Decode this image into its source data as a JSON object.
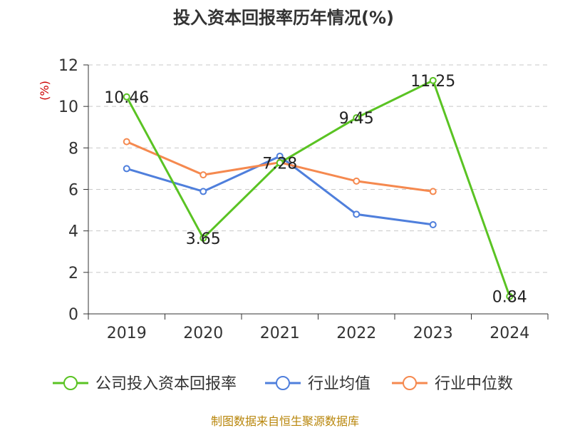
{
  "chart_data": {
    "type": "line",
    "title": "投入资本回报率历年情况(%)",
    "ylabel": "(%)",
    "xlabel": "",
    "categories": [
      "2019",
      "2020",
      "2021",
      "2022",
      "2023",
      "2024"
    ],
    "ylim": [
      0,
      12
    ],
    "yticks": [
      0,
      2,
      4,
      6,
      8,
      10,
      12
    ],
    "grid": true,
    "legend_position": "bottom",
    "series": [
      {
        "name": "公司投入资本回报率",
        "color": "#5ac323",
        "values": [
          10.46,
          3.65,
          7.28,
          9.45,
          11.25,
          0.84
        ],
        "labels": [
          "10.46",
          "3.65",
          "7.28",
          "9.45",
          "11.25",
          "0.84"
        ]
      },
      {
        "name": "行业均值",
        "color": "#4f7fdc",
        "values": [
          7.0,
          5.9,
          7.6,
          4.8,
          4.3,
          null
        ]
      },
      {
        "name": "行业中位数",
        "color": "#f5894f",
        "values": [
          8.3,
          6.7,
          7.3,
          6.4,
          5.9,
          null
        ]
      }
    ],
    "source": "制图数据来自恒生聚源数据库"
  }
}
